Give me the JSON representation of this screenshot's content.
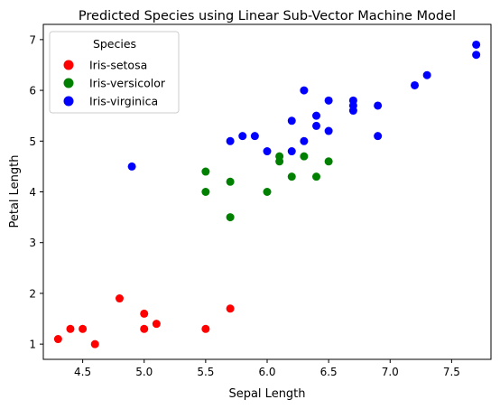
{
  "chart_data": {
    "type": "scatter",
    "title": "Predicted Species using Linear Sub-Vector Machine Model",
    "xlabel": "Sepal Length",
    "ylabel": "Petal Length",
    "xlim": [
      4.18,
      7.82
    ],
    "ylim": [
      0.7,
      7.3
    ],
    "xticks": [
      4.5,
      5.0,
      5.5,
      6.0,
      6.5,
      7.0,
      7.5
    ],
    "xtick_labels": [
      "4.5",
      "5.0",
      "5.5",
      "6.0",
      "6.5",
      "7.0",
      "7.5"
    ],
    "yticks": [
      1,
      2,
      3,
      4,
      5,
      6,
      7
    ],
    "ytick_labels": [
      "1",
      "2",
      "3",
      "4",
      "5",
      "6",
      "7"
    ],
    "grid": false,
    "legend": {
      "title": "Species",
      "placement": "upper-left"
    },
    "series": [
      {
        "name": "Iris-setosa",
        "color": "#ff0000",
        "points": [
          [
            4.3,
            1.1
          ],
          [
            4.4,
            1.3
          ],
          [
            4.5,
            1.3
          ],
          [
            4.6,
            1.0
          ],
          [
            4.8,
            1.9
          ],
          [
            5.0,
            1.6
          ],
          [
            5.0,
            1.3
          ],
          [
            5.1,
            1.4
          ],
          [
            5.5,
            1.3
          ],
          [
            5.7,
            1.7
          ]
        ]
      },
      {
        "name": "Iris-versicolor",
        "color": "#008000",
        "points": [
          [
            5.5,
            4.4
          ],
          [
            5.5,
            4.0
          ],
          [
            5.7,
            4.2
          ],
          [
            5.7,
            3.5
          ],
          [
            6.0,
            4.0
          ],
          [
            6.1,
            4.7
          ],
          [
            6.1,
            4.6
          ],
          [
            6.2,
            4.3
          ],
          [
            6.3,
            4.7
          ],
          [
            6.4,
            4.3
          ],
          [
            6.5,
            4.6
          ]
        ]
      },
      {
        "name": "Iris-virginica",
        "color": "#0000ff",
        "points": [
          [
            4.9,
            4.5
          ],
          [
            5.7,
            5.0
          ],
          [
            5.8,
            5.1
          ],
          [
            5.9,
            5.1
          ],
          [
            6.0,
            4.8
          ],
          [
            6.2,
            5.4
          ],
          [
            6.2,
            4.8
          ],
          [
            6.3,
            6.0
          ],
          [
            6.3,
            5.0
          ],
          [
            6.4,
            5.5
          ],
          [
            6.4,
            5.3
          ],
          [
            6.5,
            5.8
          ],
          [
            6.5,
            5.2
          ],
          [
            6.7,
            5.8
          ],
          [
            6.7,
            5.7
          ],
          [
            6.7,
            5.6
          ],
          [
            6.9,
            5.7
          ],
          [
            6.9,
            5.1
          ],
          [
            7.2,
            6.1
          ],
          [
            7.3,
            6.3
          ],
          [
            7.7,
            6.9
          ],
          [
            7.7,
            6.7
          ]
        ]
      }
    ]
  }
}
